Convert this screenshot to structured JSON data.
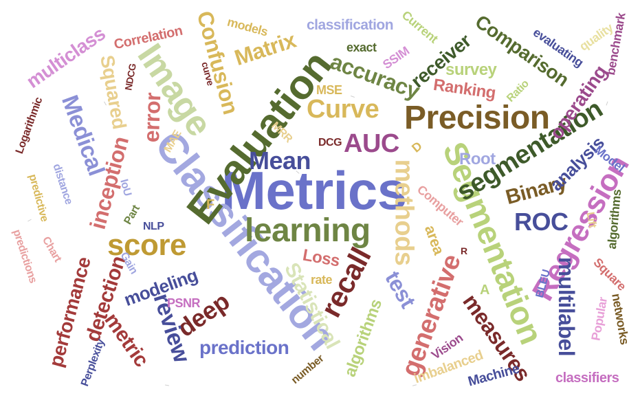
{
  "words": [
    {
      "text": "Metrics",
      "color": "#6a72c9"
    },
    {
      "text": "Classification",
      "color": "#a3a8e0"
    },
    {
      "text": "Evaluation",
      "color": "#556b2f"
    },
    {
      "text": "Precision",
      "color": "#7a5c26"
    },
    {
      "text": "Image",
      "color": "#c8d8a3"
    },
    {
      "text": "learning",
      "color": "#6e8544"
    },
    {
      "text": "Segmentation",
      "color": "#b8d27a"
    },
    {
      "text": "segmentation",
      "color": "#3e5a2a"
    },
    {
      "text": "classification",
      "color": "#a0a6e0"
    },
    {
      "text": "Curve",
      "color": "#d8b85a"
    },
    {
      "text": "Mean",
      "color": "#474e9a"
    },
    {
      "text": "AUC",
      "color": "#9b4a8c"
    },
    {
      "text": "Regression",
      "color": "#c56ec0"
    },
    {
      "text": "recall",
      "color": "#7a2a2a"
    },
    {
      "text": "methods",
      "color": "#e8cf8e"
    },
    {
      "text": "score",
      "color": "#bf9a33"
    },
    {
      "text": "generative",
      "color": "#d36e6e"
    },
    {
      "text": "accuracy",
      "color": "#6e8544"
    },
    {
      "text": "Matrix",
      "color": "#d8b85a"
    },
    {
      "text": "Confusion",
      "color": "#d8b85a"
    },
    {
      "text": "Medical",
      "color": "#8b90d6"
    },
    {
      "text": "multiclass",
      "color": "#d48fd4"
    },
    {
      "text": "Squared",
      "color": "#e8cf8e"
    },
    {
      "text": "error",
      "color": "#d36e6e"
    },
    {
      "text": "inception",
      "color": "#d36e6e"
    },
    {
      "text": "deep",
      "color": "#7a2a2a"
    },
    {
      "text": "review",
      "color": "#474e9a"
    },
    {
      "text": "prediction",
      "color": "#6a72c9"
    },
    {
      "text": "measures",
      "color": "#7a2a2a"
    },
    {
      "text": "multilabel",
      "color": "#474e9a"
    },
    {
      "text": "ROC",
      "color": "#474e9a"
    },
    {
      "text": "Binary",
      "color": "#7a5c26"
    },
    {
      "text": "test",
      "color": "#8b90d6"
    },
    {
      "text": "Statistical",
      "color": "#d9e4b8"
    },
    {
      "text": "performance",
      "color": "#a33a3a"
    },
    {
      "text": "detection",
      "color": "#a33a3a"
    },
    {
      "text": "metric",
      "color": "#a33a3a"
    },
    {
      "text": "modeling",
      "color": "#474e9a"
    },
    {
      "text": "Comparison",
      "color": "#556b2f"
    },
    {
      "text": "receiver",
      "color": "#3e5a2a"
    },
    {
      "text": "operating",
      "color": "#9b4a8c"
    },
    {
      "text": "analysis",
      "color": "#474e9a"
    },
    {
      "text": "Ranking",
      "color": "#d36e6e"
    },
    {
      "text": "survey",
      "color": "#b8d27a"
    },
    {
      "text": "Correlation",
      "color": "#d36e6e"
    },
    {
      "text": "models",
      "color": "#d8b85a"
    },
    {
      "text": "exact",
      "color": "#556b2f"
    },
    {
      "text": "SSIM",
      "color": "#d48fd4"
    },
    {
      "text": "Current",
      "color": "#b8d27a"
    },
    {
      "text": "evaluating",
      "color": "#474e9a"
    },
    {
      "text": "quality",
      "color": "#e8e0a0"
    },
    {
      "text": "benchmark",
      "color": "#9b4a8c"
    },
    {
      "text": "Ratio",
      "color": "#b8d27a"
    },
    {
      "text": "MSE",
      "color": "#d8b85a"
    },
    {
      "text": "Root",
      "color": "#a0a6e0"
    },
    {
      "text": "Model",
      "color": "#6a72c9"
    },
    {
      "text": "Loss",
      "color": "#d36e6e"
    },
    {
      "text": "rate",
      "color": "#d8b85a"
    },
    {
      "text": "area",
      "color": "#d8b85a"
    },
    {
      "text": "Computer",
      "color": "#e8a0a0"
    },
    {
      "text": "algorithms",
      "color": "#b8d27a"
    },
    {
      "text": "algorithms",
      "color": "#556b2f"
    },
    {
      "text": "Lift",
      "color": "#e8cf8e"
    },
    {
      "text": "Square",
      "color": "#d36e6e"
    },
    {
      "text": "networks",
      "color": "#7a5c26"
    },
    {
      "text": "Popular",
      "color": "#e8a0d8"
    },
    {
      "text": "BLEU",
      "color": "#6a72c9"
    },
    {
      "text": "classifiers",
      "color": "#c56ec0"
    },
    {
      "text": "Machine",
      "color": "#474e9a"
    },
    {
      "text": "imbalanced",
      "color": "#e8cf8e"
    },
    {
      "text": "Vision",
      "color": "#9b4a8c"
    },
    {
      "text": "number",
      "color": "#7a5c26"
    },
    {
      "text": "PSNR",
      "color": "#c56ec0"
    },
    {
      "text": "Perplexity",
      "color": "#474e9a"
    },
    {
      "text": "NLP",
      "color": "#474e9a"
    },
    {
      "text": "Part",
      "color": "#6e8544"
    },
    {
      "text": "Gain",
      "color": "#a0a6e0"
    },
    {
      "text": "IoU",
      "color": "#a0a6e0"
    },
    {
      "text": "MAE",
      "color": "#e8cf8e"
    },
    {
      "text": "MRR",
      "color": "#e8cf8e"
    },
    {
      "text": "DCG",
      "color": "#7a2a2a"
    },
    {
      "text": "NDCG",
      "color": "#7a2a2a"
    },
    {
      "text": "curve",
      "color": "#7a2a2a"
    },
    {
      "text": "Logarithmic",
      "color": "#7a2a2a"
    },
    {
      "text": "distance",
      "color": "#a0a6e0"
    },
    {
      "text": "predictive",
      "color": "#d8b85a"
    },
    {
      "text": "predictions",
      "color": "#e8a0a0"
    },
    {
      "text": "Chart",
      "color": "#e8a0a0"
    },
    {
      "text": "F",
      "color": "#d8b85a"
    },
    {
      "text": "D",
      "color": "#d8b85a"
    },
    {
      "text": "A",
      "color": "#b8d27a"
    },
    {
      "text": "R",
      "color": "#7a2a2a"
    }
  ]
}
